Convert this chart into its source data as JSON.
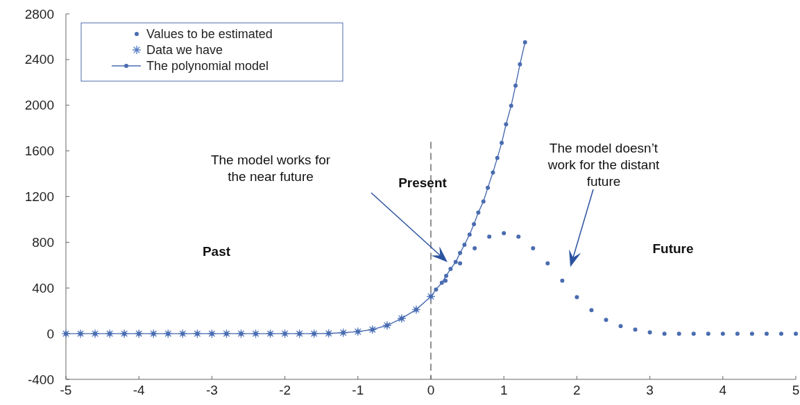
{
  "chart_data": {
    "type": "line",
    "xlim": [
      -5,
      5
    ],
    "ylim": [
      -400,
      2800
    ],
    "xticks": [
      -5,
      -4,
      -3,
      -2,
      -1,
      0,
      1,
      2,
      3,
      4,
      5
    ],
    "yticks": [
      -400,
      0,
      400,
      800,
      1200,
      1600,
      2000,
      2400,
      2800
    ],
    "grid": false,
    "legend": "top left",
    "series": [
      {
        "name": "Values to be estimated",
        "type": "scatter",
        "marker": "circle",
        "color": "#4a6cb0",
        "x": [
          0.2,
          0.4,
          0.6,
          0.8,
          1.0,
          1.2,
          1.4,
          1.6,
          1.8,
          2.0,
          2.2,
          2.4,
          2.6,
          2.8,
          3.0,
          3.2,
          3.4,
          3.6,
          3.8,
          4.0,
          4.2,
          4.4,
          4.6,
          4.8,
          5.0
        ],
        "values": [
          464,
          615,
          748,
          850,
          880,
          850,
          748,
          615,
          464,
          320,
          205,
          121,
          66,
          36,
          12,
          0,
          0,
          0,
          0,
          0,
          0,
          0,
          0,
          0,
          0
        ]
      },
      {
        "name": "Data we have",
        "type": "scatter",
        "marker": "cross",
        "color": "#5a7fc4",
        "x": [
          -5,
          -4.8,
          -4.6,
          -4.4,
          -4.2,
          -4,
          -3.8,
          -3.6,
          -3.4,
          -3.2,
          -3,
          -2.8,
          -2.6,
          -2.4,
          -2.2,
          -2,
          -1.8,
          -1.6,
          -1.4,
          -1.2,
          -1,
          -0.8,
          -0.6,
          -0.4,
          -0.2,
          0
        ],
        "values": [
          0,
          0,
          0,
          0,
          0,
          0,
          0,
          0,
          0,
          0,
          0,
          0,
          0,
          0,
          0,
          0,
          0,
          0,
          2,
          8,
          18,
          36,
          72,
          133,
          211,
          326
        ]
      },
      {
        "name": "The polynomial model",
        "marker": "circle",
        "line_style": "solid",
        "color": "#4a6cb0",
        "x": [
          -5,
          -4.8,
          -4.6,
          -4.4,
          -4.2,
          -4,
          -3.8,
          -3.6,
          -3.4,
          -3.2,
          -3,
          -2.8,
          -2.6,
          -2.4,
          -2.2,
          -2,
          -1.8,
          -1.6,
          -1.4,
          -1.2,
          -1,
          -0.8,
          -0.6,
          -0.4,
          -0.2,
          0,
          0.07,
          0.15,
          0.21,
          0.27,
          0.34,
          0.4,
          0.46,
          0.53,
          0.59,
          0.65,
          0.72,
          0.78,
          0.85,
          0.91,
          0.97,
          1.03,
          1.1,
          1.16,
          1.22,
          1.29
        ],
        "values": [
          0,
          0,
          0,
          0,
          0,
          0,
          0,
          0,
          0,
          0,
          0,
          0,
          0,
          0,
          0,
          0,
          0,
          0,
          2,
          8,
          18,
          36,
          72,
          133,
          211,
          326,
          386,
          446,
          507,
          567,
          627,
          706,
          778,
          868,
          959,
          1061,
          1158,
          1278,
          1411,
          1538,
          1670,
          1833,
          1996,
          2171,
          2358,
          2551
        ]
      }
    ],
    "ref_lines": [
      {
        "axis": "x",
        "value": 0,
        "label": "Present",
        "line_style": "dashed",
        "color": "#555555"
      }
    ],
    "annotations": [
      "The model works for\nthe near future",
      "The model doesn’t\nwork for the distant\nfuture",
      "Past",
      "Future"
    ]
  }
}
